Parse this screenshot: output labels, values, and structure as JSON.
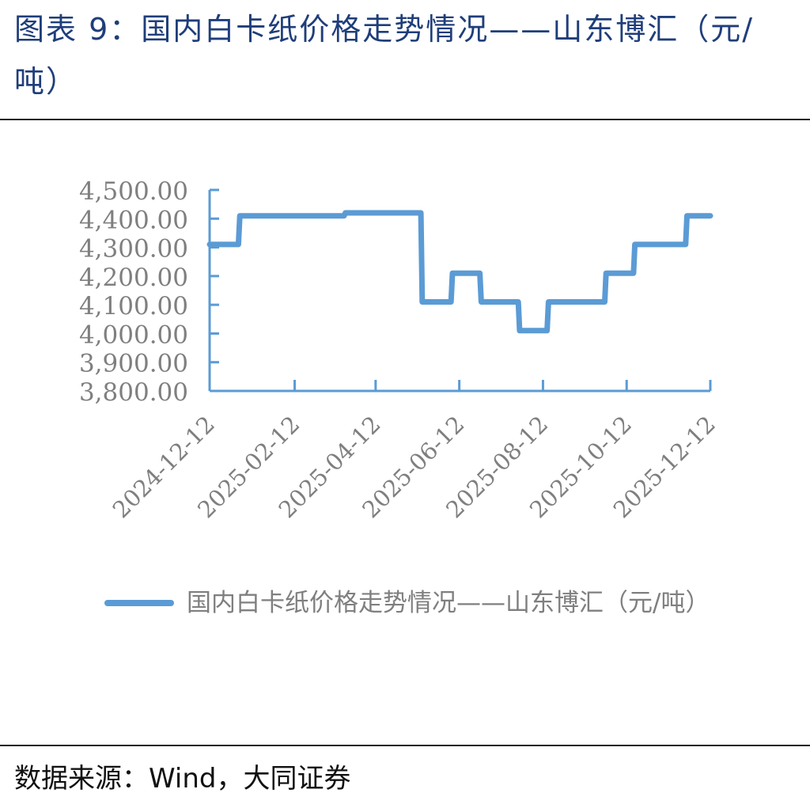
{
  "figure": {
    "title": "图表 9：国内白卡纸价格走势情况——山东博汇（元/吨）",
    "source": "数据来源：Wind，大同证券"
  },
  "chart_data": {
    "type": "line",
    "step": true,
    "series": [
      {
        "name": "国内白卡纸价格走势情况——山东博汇（元/吨）",
        "color": "#5b9bd5",
        "points": [
          [
            "2024-12-12",
            4310
          ],
          [
            "2025-01-02",
            4310
          ],
          [
            "2025-01-03",
            4410
          ],
          [
            "2025-03-20",
            4410
          ],
          [
            "2025-03-21",
            4420
          ],
          [
            "2025-05-15",
            4420
          ],
          [
            "2025-05-16",
            4110
          ],
          [
            "2025-06-06",
            4110
          ],
          [
            "2025-06-07",
            4210
          ],
          [
            "2025-06-27",
            4210
          ],
          [
            "2025-06-28",
            4110
          ],
          [
            "2025-07-25",
            4110
          ],
          [
            "2025-07-26",
            4010
          ],
          [
            "2025-08-15",
            4010
          ],
          [
            "2025-08-16",
            4110
          ],
          [
            "2025-09-26",
            4110
          ],
          [
            "2025-09-27",
            4210
          ],
          [
            "2025-10-17",
            4210
          ],
          [
            "2025-10-18",
            4310
          ],
          [
            "2025-11-24",
            4310
          ],
          [
            "2025-11-25",
            4410
          ],
          [
            "2025-12-12",
            4410
          ]
        ]
      }
    ],
    "x_ticks": [
      "2024-12-12",
      "2025-02-12",
      "2025-04-12",
      "2025-06-12",
      "2025-08-12",
      "2025-10-12",
      "2025-12-12"
    ],
    "y_ticks": [
      "3,800.00",
      "3,900.00",
      "4,000.00",
      "4,100.00",
      "4,200.00",
      "4,300.00",
      "4,400.00",
      "4,500.00"
    ],
    "ylim": [
      3800,
      4500
    ],
    "xlim": [
      "2024-12-12",
      "2025-12-12"
    ],
    "grid": false,
    "legend_position": "bottom",
    "axis_color": "#5b9bd5",
    "tick_label_color": "#7f7f7f"
  }
}
